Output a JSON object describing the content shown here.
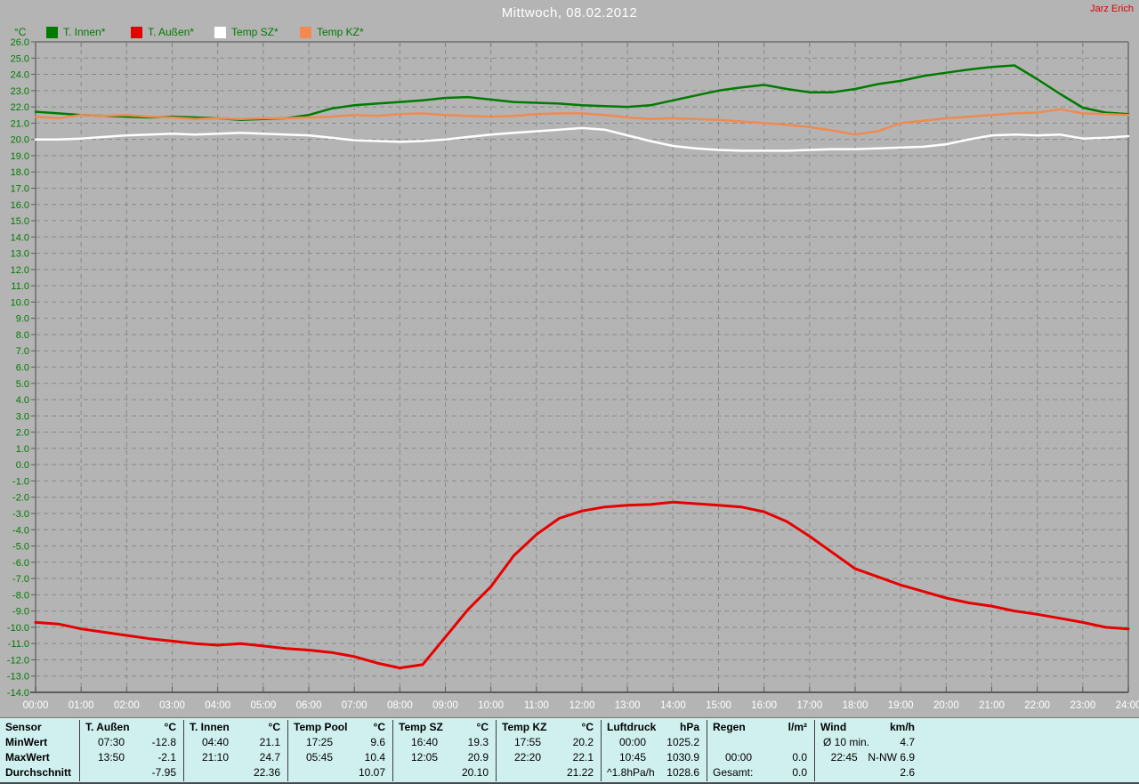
{
  "header": {
    "title": "Mittwoch, 08.02.2012",
    "watermark": "Jarz Erich"
  },
  "colors": {
    "background": "#b4b4b4",
    "grid": "#8a8a8a",
    "frame": "#7e7e7e",
    "axis": "#5c5c5c",
    "y_label": "#007b00",
    "x_label": "#ffffff",
    "title": "#ffffff",
    "watermark": "#dd0000",
    "table_bg": "#d0f0f0"
  },
  "chart_data": {
    "type": "line",
    "title": "Mittwoch, 08.02.2012",
    "y_axis_label": "°C",
    "ylim": [
      -14,
      26
    ],
    "y_tick_step": 1,
    "xlim_hours": [
      0,
      24
    ],
    "x_tick_labels": [
      "00:00",
      "01:00",
      "02:00",
      "03:00",
      "04:00",
      "05:00",
      "06:00",
      "07:00",
      "08:00",
      "09:00",
      "10:00",
      "11:00",
      "12:00",
      "13:00",
      "14:00",
      "15:00",
      "16:00",
      "17:00",
      "18:00",
      "19:00",
      "20:00",
      "21:00",
      "22:00",
      "23:00",
      "24:00"
    ],
    "grid": "dashed",
    "legend_position": "top-left",
    "x": [
      0,
      0.5,
      1,
      1.5,
      2,
      2.5,
      3,
      3.5,
      4,
      4.5,
      5,
      5.5,
      6,
      6.5,
      7,
      7.5,
      8,
      8.5,
      9,
      9.5,
      10,
      10.5,
      11,
      11.5,
      12,
      12.5,
      13,
      13.5,
      14,
      14.5,
      15,
      15.5,
      16,
      16.5,
      17,
      17.5,
      18,
      18.5,
      19,
      19.5,
      20,
      20.5,
      21,
      21.5,
      22,
      22.5,
      23,
      23.5,
      24
    ],
    "series": [
      {
        "name": "T. Innen*",
        "color": "#007b00",
        "width": 2.5,
        "values": [
          21.7,
          21.6,
          21.5,
          21.45,
          21.4,
          21.35,
          21.4,
          21.35,
          21.3,
          21.2,
          21.25,
          21.3,
          21.5,
          21.9,
          22.1,
          22.2,
          22.3,
          22.4,
          22.55,
          22.6,
          22.45,
          22.3,
          22.25,
          22.2,
          22.1,
          22.05,
          22.0,
          22.1,
          22.4,
          22.7,
          23.0,
          23.2,
          23.35,
          23.1,
          22.9,
          22.9,
          23.1,
          23.4,
          23.6,
          23.9,
          24.1,
          24.3,
          24.45,
          24.55,
          23.7,
          22.8,
          21.95,
          21.65,
          21.55
        ]
      },
      {
        "name": "T. Außen*",
        "color": "#e60000",
        "width": 3,
        "values": [
          -9.7,
          -9.8,
          -10.1,
          -10.3,
          -10.5,
          -10.7,
          -10.85,
          -11.0,
          -11.1,
          -11.0,
          -11.15,
          -11.3,
          -11.4,
          -11.55,
          -11.8,
          -12.2,
          -12.5,
          -12.3,
          -10.6,
          -8.9,
          -7.5,
          -5.6,
          -4.3,
          -3.3,
          -2.85,
          -2.6,
          -2.5,
          -2.45,
          -2.3,
          -2.4,
          -2.5,
          -2.6,
          -2.9,
          -3.5,
          -4.4,
          -5.4,
          -6.4,
          -6.9,
          -7.4,
          -7.8,
          -8.2,
          -8.5,
          -8.7,
          -9.0,
          -9.2,
          -9.45,
          -9.7,
          -10.0,
          -10.1
        ]
      },
      {
        "name": "Temp SZ*",
        "color": "#ffffff",
        "width": 2.5,
        "values": [
          20.0,
          20.0,
          20.05,
          20.15,
          20.25,
          20.3,
          20.35,
          20.3,
          20.35,
          20.4,
          20.35,
          20.3,
          20.25,
          20.1,
          19.95,
          19.9,
          19.85,
          19.9,
          20.0,
          20.15,
          20.3,
          20.4,
          20.5,
          20.6,
          20.7,
          20.6,
          20.25,
          19.9,
          19.6,
          19.45,
          19.35,
          19.3,
          19.3,
          19.3,
          19.35,
          19.4,
          19.4,
          19.45,
          19.5,
          19.55,
          19.7,
          20.0,
          20.25,
          20.3,
          20.25,
          20.3,
          20.05,
          20.1,
          20.2
        ]
      },
      {
        "name": "Temp KZ*",
        "color": "#f08a50",
        "width": 2.5,
        "values": [
          21.4,
          21.3,
          21.5,
          21.45,
          21.5,
          21.4,
          21.35,
          21.25,
          21.3,
          21.25,
          21.3,
          21.3,
          21.35,
          21.4,
          21.5,
          21.45,
          21.55,
          21.6,
          21.5,
          21.45,
          21.4,
          21.45,
          21.55,
          21.6,
          21.6,
          21.5,
          21.35,
          21.25,
          21.3,
          21.25,
          21.2,
          21.1,
          21.0,
          20.9,
          20.75,
          20.55,
          20.3,
          20.5,
          21.0,
          21.15,
          21.3,
          21.4,
          21.5,
          21.6,
          21.65,
          21.85,
          21.6,
          21.55,
          21.5
        ]
      }
    ]
  },
  "table": {
    "row_headers": [
      "Sensor",
      "MinWert",
      "MaxWert",
      "Durchschnitt"
    ],
    "groups": [
      {
        "name": "T. Außen",
        "unit": "°C",
        "min": {
          "time": "07:30",
          "value": "-12.8"
        },
        "max": {
          "time": "13:50",
          "value": "-2.1"
        },
        "avg": {
          "label": "",
          "value": "-7.95"
        }
      },
      {
        "name": "T. Innen",
        "unit": "°C",
        "min": {
          "time": "04:40",
          "value": "21.1"
        },
        "max": {
          "time": "21:10",
          "value": "24.7"
        },
        "avg": {
          "label": "",
          "value": "22.36"
        }
      },
      {
        "name": "Temp Pool",
        "unit": "°C",
        "min": {
          "time": "17:25",
          "value": "9.6"
        },
        "max": {
          "time": "05:45",
          "value": "10.4"
        },
        "avg": {
          "label": "",
          "value": "10.07"
        }
      },
      {
        "name": "Temp SZ",
        "unit": "°C",
        "min": {
          "time": "16:40",
          "value": "19.3"
        },
        "max": {
          "time": "12:05",
          "value": "20.9"
        },
        "avg": {
          "label": "",
          "value": "20.10"
        }
      },
      {
        "name": "Temp KZ",
        "unit": "°C",
        "min": {
          "time": "17:55",
          "value": "20.2"
        },
        "max": {
          "time": "22:20",
          "value": "22.1"
        },
        "avg": {
          "label": "",
          "value": "21.22"
        }
      },
      {
        "name": "Luftdruck",
        "unit": "hPa",
        "min": {
          "time": "00:00",
          "value": "1025.2"
        },
        "max": {
          "time": "10:45",
          "value": "1030.9"
        },
        "avg": {
          "label": "^1.8hPa/h",
          "value": "1028.6"
        }
      },
      {
        "name": "Regen",
        "unit": "l/m²",
        "min": {
          "time": "",
          "value": ""
        },
        "max": {
          "time": "00:00",
          "value": "0.0"
        },
        "avg": {
          "label": "Gesamt:",
          "value": "0.0"
        }
      },
      {
        "name": "Wind",
        "unit": "km/h",
        "min": {
          "time": "Ø 10 min.",
          "value": "4.7"
        },
        "max": {
          "time": "22:45",
          "value": "N-NW 6.9"
        },
        "avg": {
          "label": "",
          "value": "2.6"
        }
      }
    ]
  }
}
